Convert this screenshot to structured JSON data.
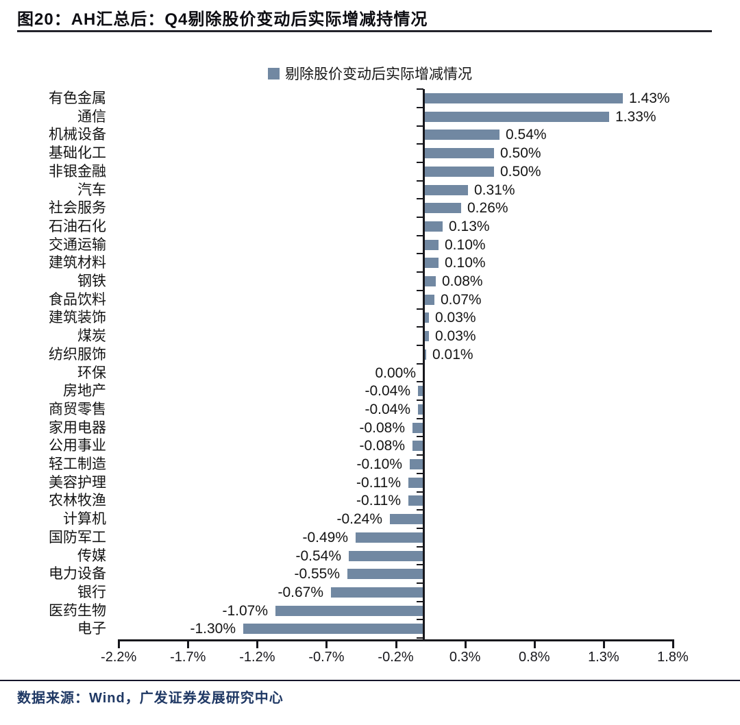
{
  "page": {
    "footer": "数据来源：Wind，广发证券发展研究中心"
  },
  "chart_data": {
    "type": "bar",
    "orientation": "horizontal",
    "title": "图20：AH汇总后：Q4剔除股价变动后实际增减持情况",
    "legend": [
      "剔除股价变动后实际增减情况"
    ],
    "legend_position": "top-center",
    "bar_color": "#7188a2",
    "grid": false,
    "categories": [
      "有色金属",
      "通信",
      "机械设备",
      "基础化工",
      "非银金融",
      "汽车",
      "社会服务",
      "石油石化",
      "交通运输",
      "建筑材料",
      "钢铁",
      "食品饮料",
      "建筑装饰",
      "煤炭",
      "纺织服饰",
      "环保",
      "房地产",
      "商贸零售",
      "家用电器",
      "公用事业",
      "轻工制造",
      "美容护理",
      "农林牧渔",
      "计算机",
      "国防军工",
      "传媒",
      "电力设备",
      "银行",
      "医药生物",
      "电子"
    ],
    "values": [
      1.43,
      1.33,
      0.54,
      0.5,
      0.5,
      0.31,
      0.26,
      0.13,
      0.1,
      0.1,
      0.08,
      0.07,
      0.03,
      0.03,
      0.01,
      0.0,
      -0.04,
      -0.04,
      -0.08,
      -0.08,
      -0.1,
      -0.11,
      -0.11,
      -0.24,
      -0.49,
      -0.54,
      -0.55,
      -0.67,
      -1.07,
      -1.3
    ],
    "value_labels": [
      "1.43%",
      "1.33%",
      "0.54%",
      "0.50%",
      "0.50%",
      "0.31%",
      "0.26%",
      "0.13%",
      "0.10%",
      "0.10%",
      "0.08%",
      "0.07%",
      "0.03%",
      "0.03%",
      "0.01%",
      "0.00%",
      "-0.04%",
      "-0.04%",
      "-0.08%",
      "-0.08%",
      "-0.10%",
      "-0.11%",
      "-0.11%",
      "-0.24%",
      "-0.49%",
      "-0.54%",
      "-0.55%",
      "-0.67%",
      "-1.07%",
      "-1.30%"
    ],
    "xlim": [
      -2.2,
      1.8
    ],
    "x_tick_values": [
      -2.2,
      -1.7,
      -1.2,
      -0.7,
      -0.2,
      0.3,
      0.8,
      1.3,
      1.8
    ],
    "x_tick_labels": [
      "-2.2%",
      "-1.7%",
      "-1.2%",
      "-0.7%",
      "-0.2%",
      "0.3%",
      "0.8%",
      "1.3%",
      "1.8%"
    ]
  }
}
